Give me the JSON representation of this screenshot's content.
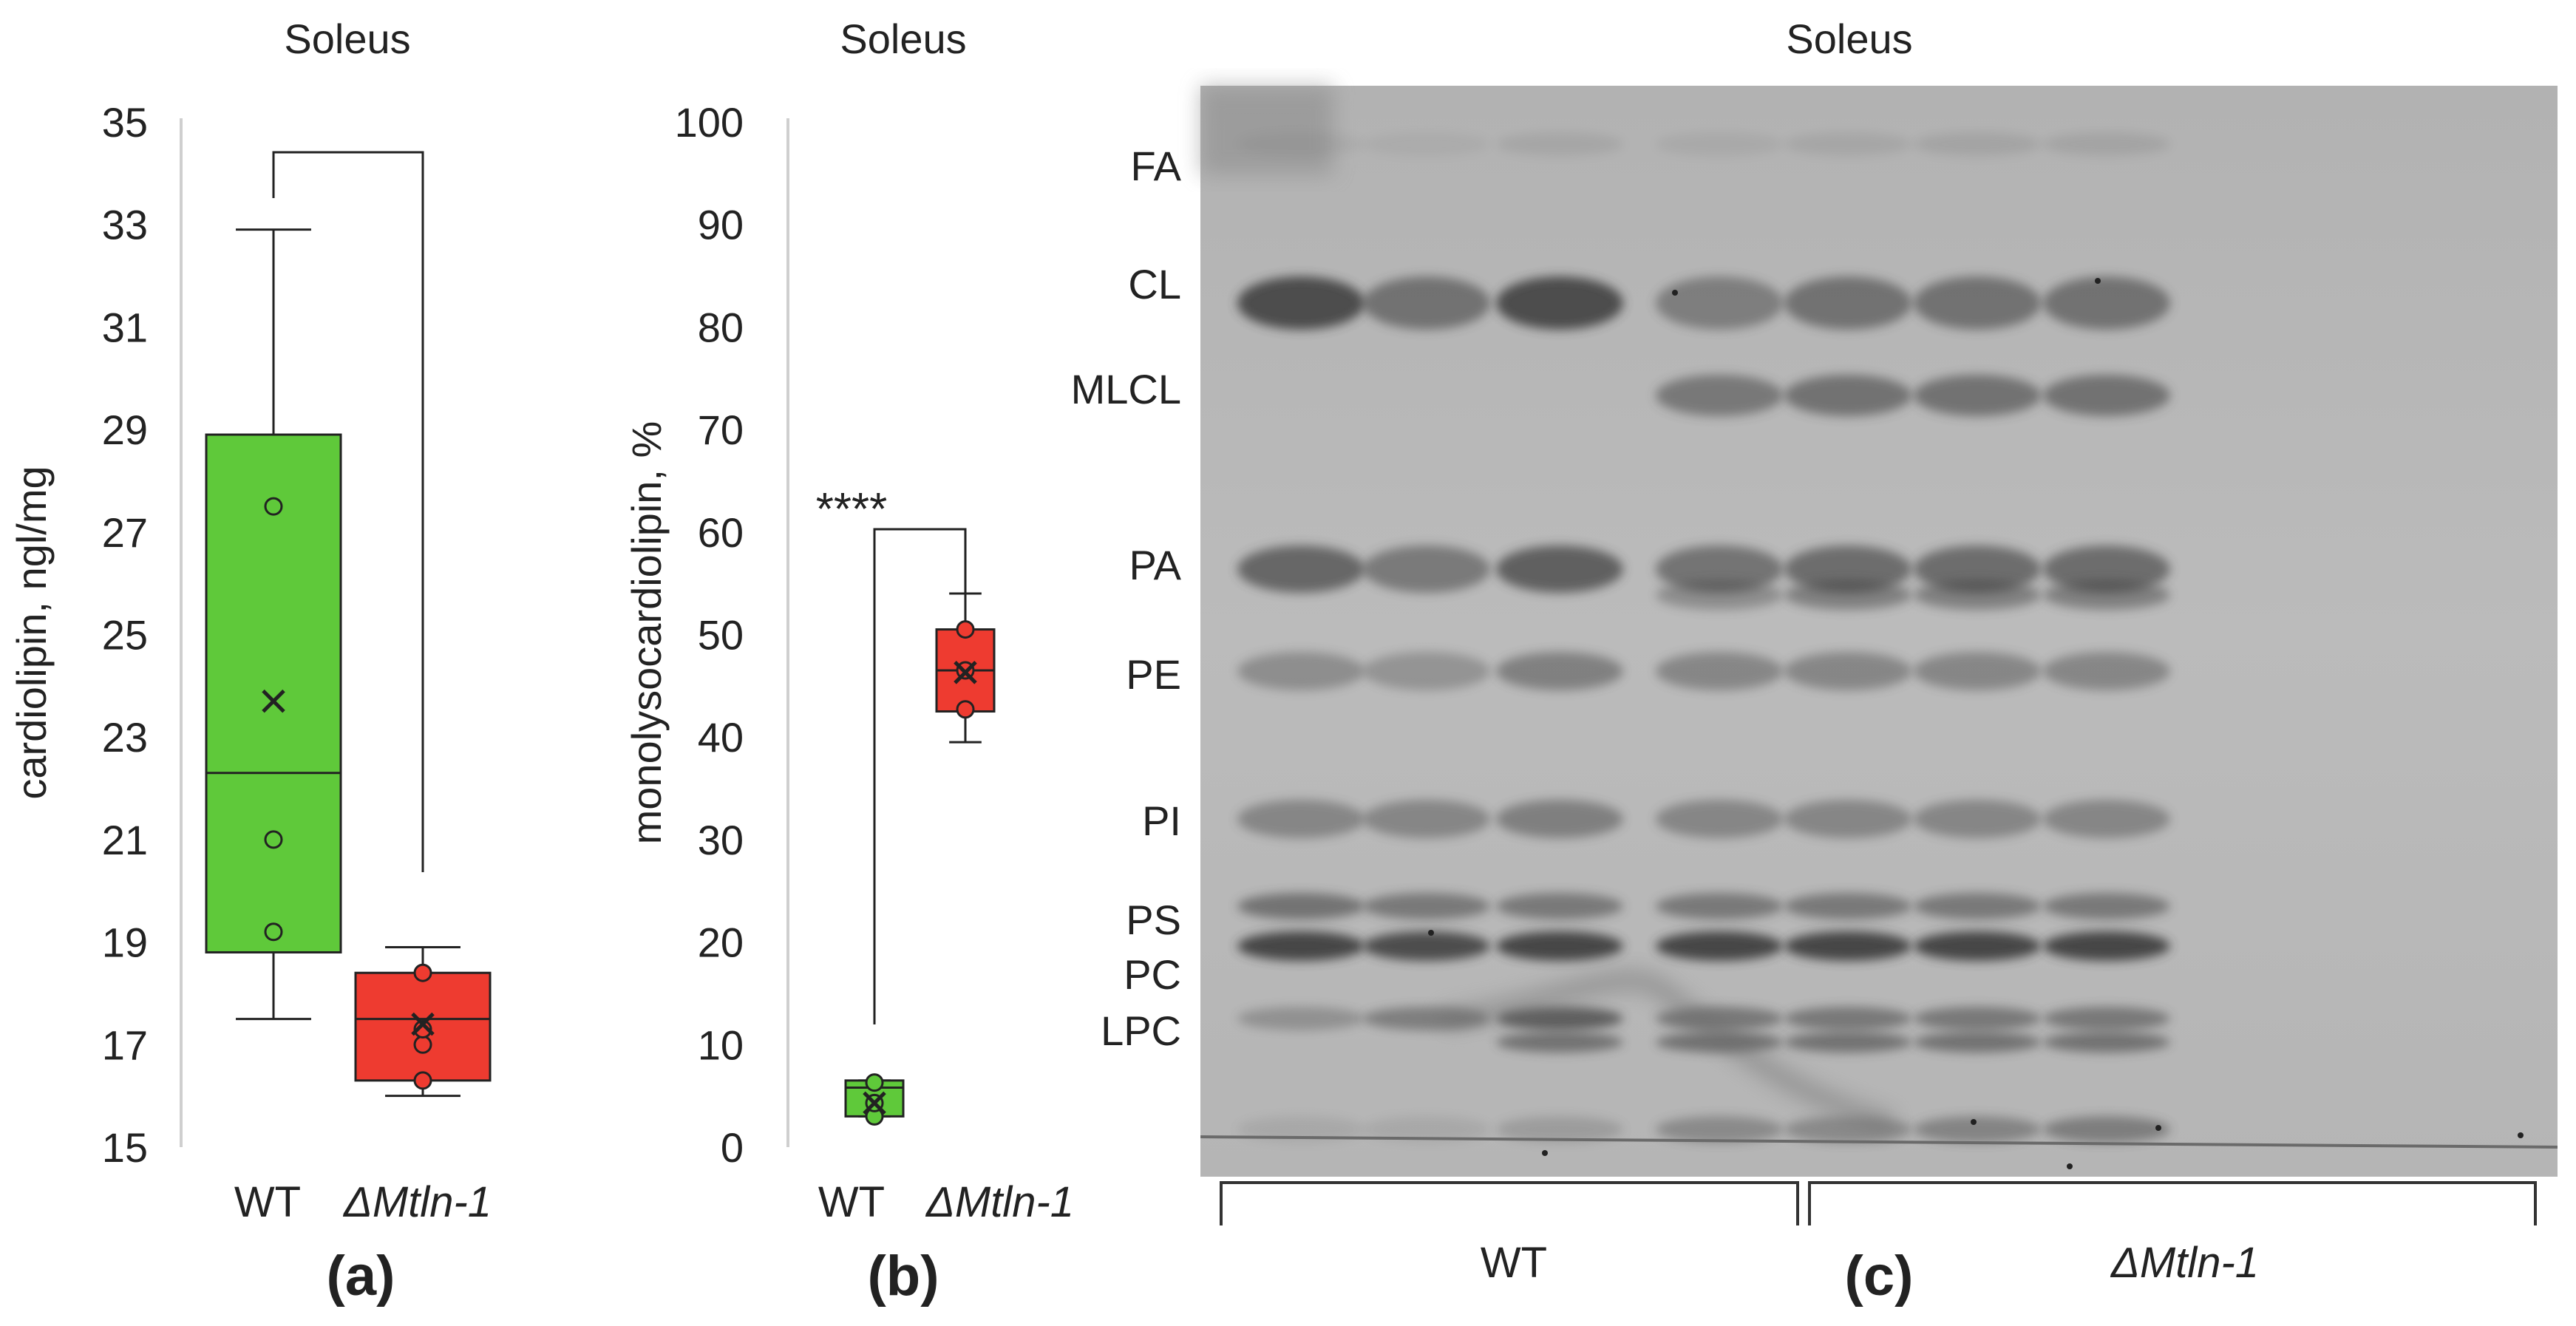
{
  "panels": {
    "a": {
      "title": "Soleus",
      "panel_label": "(a)"
    },
    "b": {
      "title": "Soleus",
      "panel_label": "(b)",
      "significance": "****"
    },
    "c": {
      "title": "Soleus",
      "panel_label": "(c)",
      "lane_labels": [
        {
          "id": "lab-fa",
          "text": "FA"
        },
        {
          "id": "lab-cl",
          "text": "CL"
        },
        {
          "id": "lab-mlcl",
          "text": "MLCL"
        },
        {
          "id": "lab-pa",
          "text": "PA"
        },
        {
          "id": "lab-pe",
          "text": "PE"
        },
        {
          "id": "lab-pi",
          "text": "PI"
        },
        {
          "id": "lab-ps",
          "text": "PS"
        },
        {
          "id": "lab-pc",
          "text": "PC"
        },
        {
          "id": "lab-lpc",
          "text": "LPC"
        }
      ],
      "groups": [
        {
          "text": "WT",
          "lanes": 3
        },
        {
          "text": "ΔMtln-1",
          "lanes": 4
        }
      ]
    }
  },
  "colors": {
    "wt": "#5fc93a",
    "mutant": "#ee3b30",
    "stroke": "#222222",
    "axis": "#cfcfcf"
  },
  "chart_data": [
    {
      "type": "box",
      "title": "Soleus",
      "ylabel": "cardiolipin, ngl/mg",
      "ylim": [
        15,
        35
      ],
      "yticks": [
        15,
        17,
        19,
        21,
        23,
        25,
        27,
        29,
        31,
        33,
        35
      ],
      "categories": [
        "WT",
        "ΔMtln-1"
      ],
      "series": [
        {
          "name": "WT",
          "min": 17.5,
          "q1": 18.8,
          "median": 22.3,
          "q3": 28.9,
          "max": 32.9,
          "mean": 23.7,
          "points": [
            19.2,
            21.0,
            27.5
          ]
        },
        {
          "name": "ΔMtln-1",
          "min": 16.0,
          "q1": 16.3,
          "median": 17.5,
          "q3": 18.4,
          "max": 18.9,
          "mean": 17.4,
          "points": [
            16.3,
            17.0,
            17.3,
            18.4
          ]
        }
      ]
    },
    {
      "type": "box",
      "title": "Soleus",
      "ylabel": "monolysocardiolipin, %",
      "ylim": [
        0,
        100
      ],
      "yticks": [
        0,
        10,
        20,
        30,
        40,
        50,
        60,
        70,
        80,
        90,
        100
      ],
      "categories": [
        "WT",
        "ΔMtln-1"
      ],
      "annotation": "****",
      "series": [
        {
          "name": "WT",
          "min": 3.0,
          "q1": 3.0,
          "median": 5.8,
          "q3": 6.5,
          "max": 6.5,
          "mean": 4.3,
          "points": [
            3.0,
            4.3,
            6.3
          ]
        },
        {
          "name": "ΔMtln-1",
          "min": 39.5,
          "q1": 42.5,
          "median": 46.5,
          "q3": 50.5,
          "max": 54.0,
          "mean": 46.3,
          "points": [
            42.7,
            46.5,
            50.5
          ]
        }
      ]
    }
  ]
}
